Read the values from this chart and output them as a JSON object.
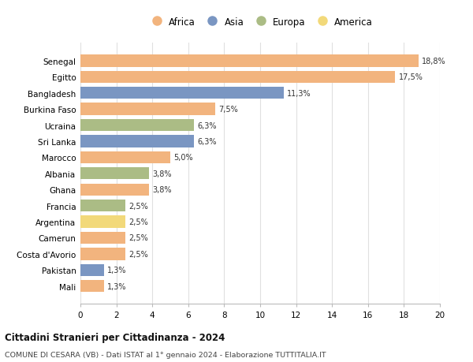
{
  "countries": [
    "Senegal",
    "Egitto",
    "Bangladesh",
    "Burkina Faso",
    "Ucraina",
    "Sri Lanka",
    "Marocco",
    "Albania",
    "Ghana",
    "Francia",
    "Argentina",
    "Camerun",
    "Costa d'Avorio",
    "Pakistan",
    "Mali"
  ],
  "values": [
    18.8,
    17.5,
    11.3,
    7.5,
    6.3,
    6.3,
    5.0,
    3.8,
    3.8,
    2.5,
    2.5,
    2.5,
    2.5,
    1.3,
    1.3
  ],
  "labels": [
    "18,8%",
    "17,5%",
    "11,3%",
    "7,5%",
    "6,3%",
    "6,3%",
    "5,0%",
    "3,8%",
    "3,8%",
    "2,5%",
    "2,5%",
    "2,5%",
    "2,5%",
    "1,3%",
    "1,3%"
  ],
  "continents": [
    "Africa",
    "Africa",
    "Asia",
    "Africa",
    "Europa",
    "Asia",
    "Africa",
    "Europa",
    "Africa",
    "Europa",
    "America",
    "Africa",
    "Africa",
    "Asia",
    "Africa"
  ],
  "colors": {
    "Africa": "#F2B47E",
    "Asia": "#7A96C2",
    "Europa": "#ABBC85",
    "America": "#F2D97A"
  },
  "title": "Cittadini Stranieri per Cittadinanza - 2024",
  "subtitle": "COMUNE DI CESARA (VB) - Dati ISTAT al 1° gennaio 2024 - Elaborazione TUTTITALIA.IT",
  "xlim": [
    0,
    20
  ],
  "xticks": [
    0,
    2,
    4,
    6,
    8,
    10,
    12,
    14,
    16,
    18,
    20
  ],
  "background_color": "#ffffff",
  "grid_color": "#e0e0e0",
  "bar_height": 0.75
}
